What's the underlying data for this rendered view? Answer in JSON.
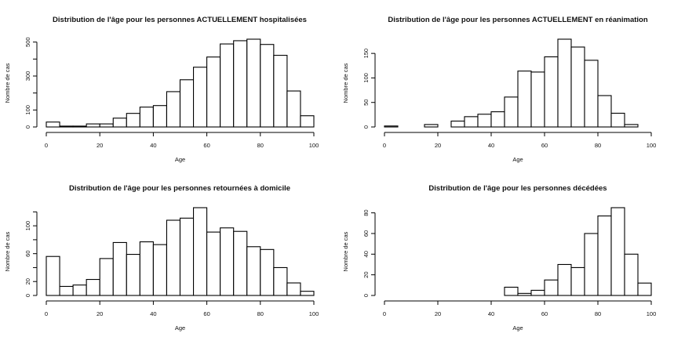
{
  "chart_data": [
    {
      "type": "bar",
      "title": "Distribution de l'âge pour les personnes ACTUELLEMENT hospitalisées",
      "xlabel": "Age",
      "ylabel": "Nombre de cas",
      "breaks": [
        0,
        5,
        10,
        15,
        20,
        25,
        30,
        35,
        40,
        45,
        50,
        55,
        60,
        65,
        70,
        75,
        80,
        85,
        90,
        95,
        100
      ],
      "values": [
        29,
        5,
        5,
        18,
        18,
        52,
        80,
        117,
        126,
        208,
        278,
        352,
        412,
        489,
        508,
        517,
        486,
        422,
        212,
        66
      ],
      "xticks": [
        0,
        20,
        40,
        60,
        80,
        100
      ],
      "yticks": [
        0,
        100,
        200,
        300,
        400,
        500
      ],
      "ytick_labels": [
        "0",
        "100",
        "",
        "300",
        "",
        "500"
      ],
      "xlim": [
        0,
        100
      ],
      "grid": false
    },
    {
      "type": "bar",
      "title": "Distribution de l'âge pour les personnes ACTUELLEMENT en réanimation",
      "xlabel": "Age",
      "ylabel": "Nombre de cas",
      "breaks": [
        0,
        5,
        10,
        15,
        20,
        25,
        30,
        35,
        40,
        45,
        50,
        55,
        60,
        65,
        70,
        75,
        80,
        85,
        90,
        95,
        100
      ],
      "values": [
        2,
        0,
        0,
        5,
        0,
        12,
        21,
        26,
        31,
        61,
        114,
        112,
        143,
        179,
        163,
        136,
        64,
        28,
        5,
        0
      ],
      "xticks": [
        0,
        20,
        40,
        60,
        80,
        100
      ],
      "yticks": [
        0,
        50,
        100,
        150
      ],
      "ytick_labels": [
        "0",
        "50",
        "100",
        "150"
      ],
      "xlim": [
        0,
        100
      ],
      "grid": false
    },
    {
      "type": "bar",
      "title": "Distribution de l'âge pour les personnes retournées à domicile",
      "xlabel": "Age",
      "ylabel": "Nombre de cas",
      "breaks": [
        0,
        5,
        10,
        15,
        20,
        25,
        30,
        35,
        40,
        45,
        50,
        55,
        60,
        65,
        70,
        75,
        80,
        85,
        90,
        95,
        100
      ],
      "values": [
        56,
        13,
        15,
        23,
        53,
        76,
        59,
        77,
        73,
        108,
        111,
        126,
        91,
        97,
        92,
        70,
        66,
        40,
        18,
        6
      ],
      "xticks": [
        0,
        20,
        40,
        60,
        80,
        100
      ],
      "yticks": [
        0,
        20,
        40,
        60,
        80,
        100,
        120
      ],
      "ytick_labels": [
        "0",
        "20",
        "",
        "60",
        "",
        "100",
        ""
      ],
      "xlim": [
        0,
        100
      ],
      "grid": false
    },
    {
      "type": "bar",
      "title": "Distribution de l'âge pour les personnes décédées",
      "xlabel": "Age",
      "ylabel": "Nombre de cas",
      "breaks": [
        20,
        25,
        30,
        35,
        40,
        45,
        50,
        55,
        60,
        65,
        70,
        75,
        80,
        85,
        90,
        95,
        100
      ],
      "values": [
        0,
        0,
        0,
        0,
        0,
        8,
        2,
        5,
        15,
        30,
        27,
        60,
        77,
        85,
        40,
        12
      ],
      "xticks": [
        0,
        20,
        40,
        60,
        80,
        100
      ],
      "yticks": [
        0,
        20,
        40,
        60,
        80
      ],
      "ytick_labels": [
        "0",
        "20",
        "40",
        "60",
        "80"
      ],
      "xlim": [
        0,
        100
      ],
      "grid": false
    }
  ]
}
